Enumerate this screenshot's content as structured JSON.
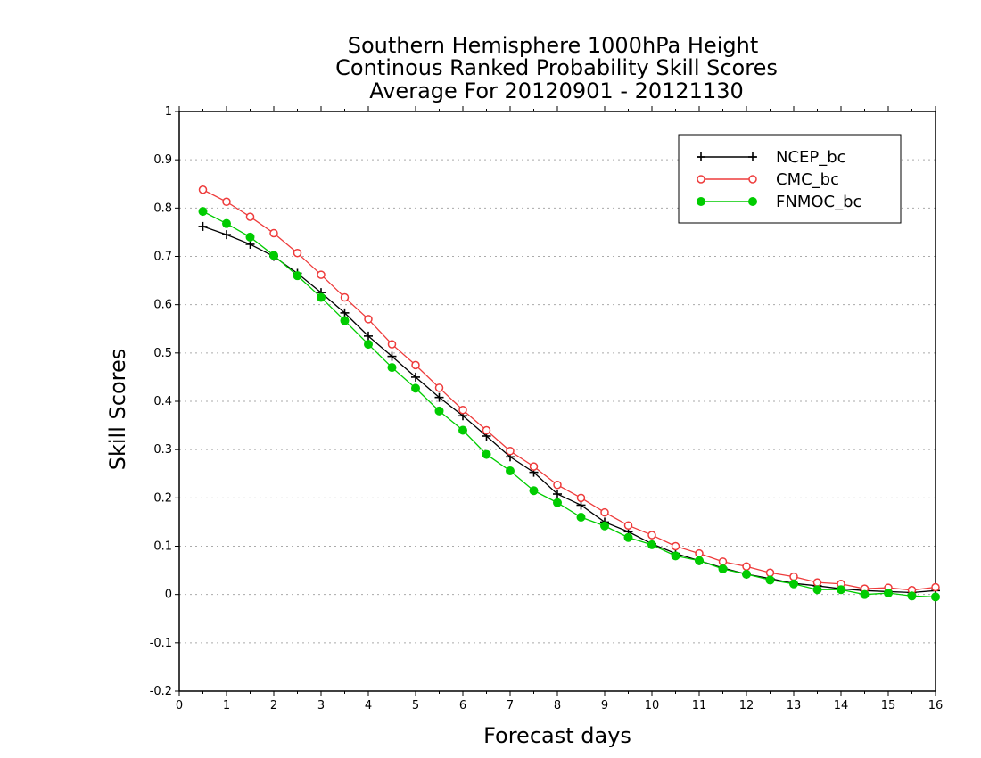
{
  "chart_data": {
    "type": "line",
    "title": [
      "Southern Hemisphere 1000hPa Height",
      "Continous Ranked Probability Skill Scores",
      "Average For 20120901 - 20121130"
    ],
    "xlabel": "Forecast days",
    "ylabel": "Skill Scores",
    "xlim": [
      0,
      16
    ],
    "ylim": [
      -0.2,
      1
    ],
    "xticks": [
      0,
      1,
      2,
      3,
      4,
      5,
      6,
      7,
      8,
      9,
      10,
      11,
      12,
      13,
      14,
      15,
      16
    ],
    "yticks": [
      -0.2,
      -0.1,
      0,
      0.1,
      0.2,
      0.3,
      0.4,
      0.5,
      0.6,
      0.7,
      0.8,
      0.9,
      1
    ],
    "ytick_labels": [
      "-0.2",
      "-0.1",
      "0",
      "0.1",
      "0.2",
      "0.3",
      "0.4",
      "0.5",
      "0.6",
      "0.7",
      "0.8",
      "0.9",
      "1"
    ],
    "grid": "horizontal dotted",
    "legend_position": "top-right",
    "x": [
      0.5,
      1,
      1.5,
      2,
      2.5,
      3,
      3.5,
      4,
      4.5,
      5,
      5.5,
      6,
      6.5,
      7,
      7.5,
      8,
      8.5,
      9,
      9.5,
      10,
      10.5,
      11,
      11.5,
      12,
      12.5,
      13,
      13.5,
      14,
      14.5,
      15,
      15.5,
      16
    ],
    "series": [
      {
        "name": "NCEP_bc",
        "color": "#000000",
        "marker": "plus",
        "values": [
          0.762,
          0.745,
          0.725,
          0.7,
          0.665,
          0.625,
          0.583,
          0.535,
          0.493,
          0.45,
          0.408,
          0.37,
          0.328,
          0.285,
          0.253,
          0.208,
          0.185,
          0.15,
          0.13,
          0.105,
          0.085,
          0.07,
          0.055,
          0.042,
          0.033,
          0.023,
          0.018,
          0.012,
          0.008,
          0.006,
          0.004,
          0.008
        ]
      },
      {
        "name": "CMC_bc",
        "color": "#ee3b3b",
        "marker": "open-circle",
        "values": [
          0.838,
          0.813,
          0.782,
          0.748,
          0.707,
          0.662,
          0.615,
          0.57,
          0.518,
          0.475,
          0.428,
          0.382,
          0.34,
          0.297,
          0.265,
          0.227,
          0.2,
          0.17,
          0.143,
          0.123,
          0.1,
          0.085,
          0.068,
          0.058,
          0.045,
          0.037,
          0.025,
          0.022,
          0.012,
          0.014,
          0.009,
          0.015
        ]
      },
      {
        "name": "FNMOC_bc",
        "color": "#00cc00",
        "marker": "filled-circle",
        "values": [
          0.793,
          0.768,
          0.74,
          0.702,
          0.66,
          0.615,
          0.567,
          0.518,
          0.47,
          0.427,
          0.38,
          0.34,
          0.29,
          0.256,
          0.215,
          0.19,
          0.16,
          0.142,
          0.118,
          0.103,
          0.08,
          0.07,
          0.053,
          0.042,
          0.03,
          0.022,
          0.01,
          0.01,
          0.0,
          0.003,
          -0.003,
          -0.005
        ]
      }
    ]
  }
}
